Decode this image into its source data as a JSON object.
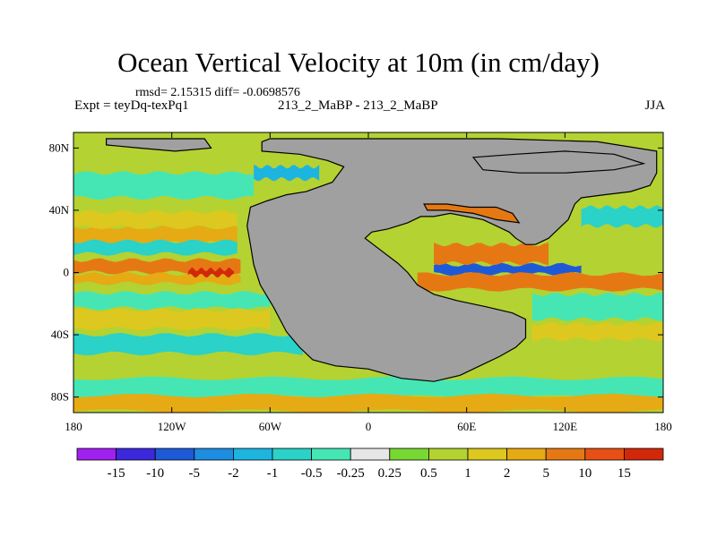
{
  "chart_data": {
    "type": "heatmap",
    "title": "Ocean Vertical Velocity at 10m (in cm/day)",
    "stats_line": "rmsd= 2.15315 diff= -0.0698576",
    "left_label": "Expt = teyDq-texPq1",
    "center_label": "213_2_MaBP - 213_2_MaBP",
    "right_label": "JJA",
    "xlabel": "",
    "ylabel": "",
    "xlim": [
      -180,
      180
    ],
    "ylim": [
      -90,
      90
    ],
    "x_ticks": [
      {
        "value": -180,
        "label": "180"
      },
      {
        "value": -120,
        "label": "120W"
      },
      {
        "value": -60,
        "label": "60W"
      },
      {
        "value": 0,
        "label": "0"
      },
      {
        "value": 60,
        "label": "60E"
      },
      {
        "value": 120,
        "label": "120E"
      },
      {
        "value": 180,
        "label": "180"
      }
    ],
    "y_ticks": [
      {
        "value": 80,
        "label": "80N"
      },
      {
        "value": 40,
        "label": "40N"
      },
      {
        "value": 0,
        "label": "0"
      },
      {
        "value": -40,
        "label": "40S"
      },
      {
        "value": -80,
        "label": "80S"
      }
    ],
    "colorbar": {
      "levels": [
        "-15",
        "-10",
        "-5",
        "-2",
        "-1",
        "-0.5",
        "-0.25",
        "0.25",
        "0.5",
        "1",
        "2",
        "5",
        "10",
        "15"
      ],
      "colors": [
        "#a020f0",
        "#3c28dc",
        "#1e5ad8",
        "#1e8ce0",
        "#1eb4e0",
        "#2ad2c8",
        "#46e6b4",
        "#e6e6e6",
        "#78d832",
        "#b4d232",
        "#dcc81e",
        "#e6aa14",
        "#e67814",
        "#e65014",
        "#d2280a"
      ]
    },
    "land_color": "#a0a0a0",
    "land_regions": [
      {
        "name": "supercontinent-west",
        "outline": [
          [
            -65,
            78
          ],
          [
            -42,
            76
          ],
          [
            -25,
            72
          ],
          [
            -15,
            68
          ],
          [
            -22,
            58
          ],
          [
            -38,
            52
          ],
          [
            -50,
            50
          ],
          [
            -62,
            46
          ],
          [
            -72,
            42
          ],
          [
            -74,
            30
          ],
          [
            -72,
            18
          ],
          [
            -70,
            5
          ],
          [
            -66,
            -8
          ],
          [
            -58,
            -22
          ],
          [
            -50,
            -38
          ],
          [
            -42,
            -48
          ],
          [
            -34,
            -56
          ],
          [
            -20,
            -60
          ],
          [
            0,
            -62
          ],
          [
            20,
            -68
          ],
          [
            40,
            -70
          ],
          [
            56,
            -66
          ],
          [
            68,
            -60
          ],
          [
            80,
            -54
          ],
          [
            90,
            -48
          ],
          [
            96,
            -42
          ],
          [
            96,
            -30
          ],
          [
            88,
            -26
          ],
          [
            72,
            -22
          ],
          [
            54,
            -18
          ],
          [
            40,
            -14
          ],
          [
            30,
            -8
          ],
          [
            24,
            0
          ],
          [
            18,
            6
          ],
          [
            8,
            14
          ],
          [
            -2,
            22
          ],
          [
            2,
            26
          ],
          [
            12,
            28
          ],
          [
            24,
            32
          ],
          [
            32,
            36
          ],
          [
            40,
            36
          ],
          [
            50,
            38
          ],
          [
            60,
            36
          ],
          [
            70,
            34
          ],
          [
            78,
            30
          ],
          [
            86,
            26
          ],
          [
            90,
            22
          ],
          [
            96,
            18
          ],
          [
            102,
            18
          ],
          [
            110,
            22
          ],
          [
            116,
            28
          ],
          [
            122,
            34
          ],
          [
            126,
            44
          ],
          [
            130,
            48
          ],
          [
            144,
            50
          ],
          [
            160,
            52
          ],
          [
            172,
            56
          ],
          [
            176,
            64
          ],
          [
            176,
            78
          ],
          [
            140,
            84
          ],
          [
            80,
            86
          ],
          [
            20,
            86
          ],
          [
            -60,
            86
          ],
          [
            -65,
            84
          ]
        ]
      },
      {
        "name": "inland-sea",
        "outline": [
          [
            34,
            44
          ],
          [
            48,
            44
          ],
          [
            62,
            42
          ],
          [
            78,
            42
          ],
          [
            88,
            38
          ],
          [
            92,
            32
          ],
          [
            78,
            34
          ],
          [
            64,
            38
          ],
          [
            48,
            40
          ],
          [
            36,
            40
          ]
        ]
      },
      {
        "name": "arctic-island",
        "outline": [
          [
            -160,
            86
          ],
          [
            -100,
            86
          ],
          [
            -96,
            80
          ],
          [
            -118,
            78
          ],
          [
            -140,
            80
          ],
          [
            -160,
            82
          ]
        ]
      },
      {
        "name": "high-plateau",
        "outline": [
          [
            64,
            74
          ],
          [
            90,
            76
          ],
          [
            120,
            78
          ],
          [
            150,
            76
          ],
          [
            168,
            70
          ],
          [
            150,
            66
          ],
          [
            120,
            64
          ],
          [
            92,
            64
          ],
          [
            70,
            66
          ]
        ]
      }
    ],
    "anomaly_bands": [
      {
        "lat_center": 4,
        "lat_half_width": 4,
        "lon_min": -180,
        "lon_max": -78,
        "value": 5
      },
      {
        "lat_center": -4,
        "lat_half_width": 3,
        "lon_min": -180,
        "lon_max": -78,
        "value": 2
      },
      {
        "lat_center": 0,
        "lat_half_width": 2,
        "lon_min": -110,
        "lon_max": -82,
        "value": 15
      },
      {
        "lat_center": 2,
        "lat_half_width": 3,
        "lon_min": 40,
        "lon_max": 130,
        "value": -10
      },
      {
        "lat_center": -6,
        "lat_half_width": 5,
        "lon_min": 30,
        "lon_max": 180,
        "value": 5
      },
      {
        "lat_center": 12,
        "lat_half_width": 6,
        "lon_min": 40,
        "lon_max": 110,
        "value": 5
      },
      {
        "lat_center": 24,
        "lat_half_width": 5,
        "lon_min": -180,
        "lon_max": -80,
        "value": 2
      },
      {
        "lat_center": 16,
        "lat_half_width": 4,
        "lon_min": -180,
        "lon_max": -80,
        "value": -1
      },
      {
        "lat_center": 34,
        "lat_half_width": 5,
        "lon_min": -180,
        "lon_max": -80,
        "value": 1
      },
      {
        "lat_center": -18,
        "lat_half_width": 5,
        "lon_min": -180,
        "lon_max": -60,
        "value": -0.5
      },
      {
        "lat_center": -30,
        "lat_half_width": 6,
        "lon_min": -180,
        "lon_max": -60,
        "value": 1
      },
      {
        "lat_center": -46,
        "lat_half_width": 6,
        "lon_min": -180,
        "lon_max": -40,
        "value": -1
      },
      {
        "lat_center": -60,
        "lat_half_width": 6,
        "lon_min": -180,
        "lon_max": 180,
        "value": 0.5
      },
      {
        "lat_center": -74,
        "lat_half_width": 6,
        "lon_min": -180,
        "lon_max": 180,
        "value": -0.5
      },
      {
        "lat_center": -84,
        "lat_half_width": 5,
        "lon_min": -180,
        "lon_max": 180,
        "value": 2
      },
      {
        "lat_center": 56,
        "lat_half_width": 8,
        "lon_min": -180,
        "lon_max": -70,
        "value": -0.5
      },
      {
        "lat_center": 72,
        "lat_half_width": 6,
        "lon_min": -180,
        "lon_max": -60,
        "value": 0.5
      },
      {
        "lat_center": 64,
        "lat_half_width": 4,
        "lon_min": -70,
        "lon_max": -30,
        "value": -2
      },
      {
        "lat_center": -22,
        "lat_half_width": 8,
        "lon_min": 100,
        "lon_max": 180,
        "value": -0.5
      },
      {
        "lat_center": -38,
        "lat_half_width": 5,
        "lon_min": 100,
        "lon_max": 180,
        "value": 1
      },
      {
        "lat_center": 36,
        "lat_half_width": 6,
        "lon_min": 130,
        "lon_max": 180,
        "value": -1
      },
      {
        "lat_center": 58,
        "lat_half_width": 6,
        "lon_min": 130,
        "lon_max": 180,
        "value": 0.5
      }
    ]
  }
}
